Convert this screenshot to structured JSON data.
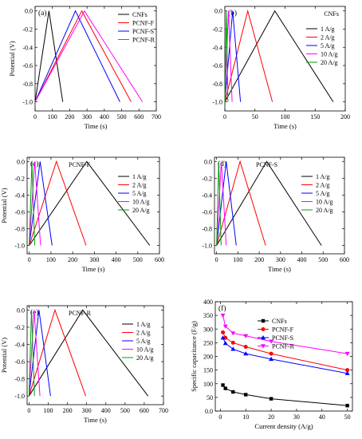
{
  "colors": {
    "black": "#000000",
    "red": "#ff0000",
    "blue": "#0000ff",
    "magenta": "#ff00ff",
    "green": "#00a000"
  },
  "chart_data": [
    {
      "panel": "(a)",
      "type": "line",
      "title": "",
      "xlabel": "Time (s)",
      "ylabel": "Potential (V)",
      "xlim": [
        0,
        700
      ],
      "ylim": [
        -1.1,
        0.05
      ],
      "xticks": [
        0,
        100,
        200,
        300,
        400,
        500,
        600,
        700
      ],
      "yticks": [
        -1.0,
        -0.8,
        -0.6,
        -0.4,
        -0.2,
        0.0
      ],
      "legend_position": "top-right",
      "series": [
        {
          "name": "CNFs",
          "color": "#000000",
          "x": [
            0,
            80,
            160
          ],
          "y": [
            -1.0,
            0.0,
            -1.0
          ]
        },
        {
          "name": "PCNF-F",
          "color": "#ff0000",
          "x": [
            0,
            270,
            555
          ],
          "y": [
            -1.0,
            0.0,
            -1.0
          ]
        },
        {
          "name": "PCNF-S",
          "color": "#0000ff",
          "x": [
            0,
            233,
            490
          ],
          "y": [
            -1.0,
            0.0,
            -1.0
          ]
        },
        {
          "name": "PCNF-R",
          "color": "#ff00ff",
          "x": [
            0,
            285,
            620
          ],
          "y": [
            -1.0,
            0.0,
            -1.0
          ]
        }
      ]
    },
    {
      "panel": "(b)",
      "type": "line",
      "title": "CNFs",
      "xlabel": "Time (s)",
      "ylabel": "",
      "xlim": [
        0,
        200
      ],
      "ylim": [
        -1.1,
        0.05
      ],
      "xticks": [
        0,
        50,
        100,
        150,
        200
      ],
      "yticks": [
        -1.0,
        -0.8,
        -0.6,
        -0.4,
        -0.2,
        0.0
      ],
      "legend_position": "right",
      "series": [
        {
          "name": "1 A/g",
          "color": "#000000",
          "x": [
            0,
            83,
            180
          ],
          "y": [
            -1.0,
            0.0,
            -1.0
          ]
        },
        {
          "name": "2 A/g",
          "color": "#ff0000",
          "x": [
            0,
            38,
            79
          ],
          "y": [
            -1.0,
            0.0,
            -1.0
          ]
        },
        {
          "name": "5 A/g",
          "color": "#0000ff",
          "x": [
            0,
            13,
            26
          ],
          "y": [
            -1.0,
            0.0,
            -1.0
          ]
        },
        {
          "name": "10 A/g",
          "color": "#ff00ff",
          "x": [
            0,
            6,
            12
          ],
          "y": [
            -1.0,
            0.0,
            -1.0
          ]
        },
        {
          "name": "20 A/g",
          "color": "#00a000",
          "x": [
            0,
            2.5,
            5
          ],
          "y": [
            -1.0,
            0.0,
            -1.0
          ]
        }
      ]
    },
    {
      "panel": "(c)",
      "type": "line",
      "title": "PCNF-F",
      "xlabel": "Time (s)",
      "ylabel": "Potential (V)",
      "xlim": [
        -10,
        600
      ],
      "ylim": [
        -1.1,
        0.05
      ],
      "xticks": [
        0,
        100,
        200,
        300,
        400,
        500,
        600
      ],
      "yticks": [
        -1.0,
        -0.8,
        -0.6,
        -0.4,
        -0.2,
        0.0
      ],
      "legend_position": "right",
      "series": [
        {
          "name": "1 A/g",
          "color": "#000000",
          "x": [
            0,
            265,
            555
          ],
          "y": [
            -1.0,
            0.0,
            -1.0
          ]
        },
        {
          "name": "2 A/g",
          "color": "#ff0000",
          "x": [
            0,
            125,
            262
          ],
          "y": [
            -1.0,
            0.0,
            -1.0
          ]
        },
        {
          "name": "5 A/g",
          "color": "#0000ff",
          "x": [
            0,
            50,
            105
          ],
          "y": [
            -1.0,
            0.0,
            -1.0
          ]
        },
        {
          "name": "10 A/g",
          "color": "#ff00ff",
          "x": [
            0,
            25,
            52
          ],
          "y": [
            -1.0,
            0.0,
            -1.0
          ]
        },
        {
          "name": "20 A/g",
          "color": "#00a000",
          "x": [
            0,
            12,
            25
          ],
          "y": [
            -1.0,
            0.0,
            -1.0
          ]
        }
      ]
    },
    {
      "panel": "(d)",
      "type": "line",
      "title": "PCNF-S",
      "xlabel": "Time (s)",
      "ylabel": "",
      "xlim": [
        -10,
        600
      ],
      "ylim": [
        -1.1,
        0.05
      ],
      "xticks": [
        0,
        100,
        200,
        300,
        400,
        500,
        600
      ],
      "yticks": [
        -1.0,
        -0.8,
        -0.6,
        -0.4,
        -0.2,
        0.0
      ],
      "legend_position": "right",
      "series": [
        {
          "name": "1 A/g",
          "color": "#000000",
          "x": [
            0,
            235,
            492
          ],
          "y": [
            -1.0,
            0.0,
            -1.0
          ]
        },
        {
          "name": "2 A/g",
          "color": "#ff0000",
          "x": [
            0,
            110,
            230
          ],
          "y": [
            -1.0,
            0.0,
            -1.0
          ]
        },
        {
          "name": "5 A/g",
          "color": "#0000ff",
          "x": [
            0,
            45,
            92
          ],
          "y": [
            -1.0,
            0.0,
            -1.0
          ]
        },
        {
          "name": "10 A/g",
          "color": "#ff00ff",
          "x": [
            0,
            22,
            45
          ],
          "y": [
            -1.0,
            0.0,
            -1.0
          ]
        },
        {
          "name": "20 A/g",
          "color": "#00a000",
          "x": [
            0,
            10,
            21
          ],
          "y": [
            -1.0,
            0.0,
            -1.0
          ]
        }
      ]
    },
    {
      "panel": "(e)",
      "type": "line",
      "title": "PCNF-R",
      "xlabel": "Time (s)",
      "ylabel": "Potential (V)",
      "xlim": [
        -10,
        700
      ],
      "ylim": [
        -1.1,
        0.05
      ],
      "xticks": [
        0,
        100,
        200,
        300,
        400,
        500,
        600,
        700
      ],
      "yticks": [
        -1.0,
        -0.8,
        -0.6,
        -0.4,
        -0.2,
        0.0
      ],
      "legend_position": "right",
      "series": [
        {
          "name": "1 A/g",
          "color": "#000000",
          "x": [
            0,
            280,
            620
          ],
          "y": [
            -1.0,
            0.0,
            -1.0
          ]
        },
        {
          "name": "2 A/g",
          "color": "#ff0000",
          "x": [
            0,
            135,
            295
          ],
          "y": [
            -1.0,
            0.0,
            -1.0
          ]
        },
        {
          "name": "5 A/g",
          "color": "#0000ff",
          "x": [
            0,
            52,
            112
          ],
          "y": [
            -1.0,
            0.0,
            -1.0
          ]
        },
        {
          "name": "10 A/g",
          "color": "#ff00ff",
          "x": [
            0,
            26,
            57
          ],
          "y": [
            -1.0,
            0.0,
            -1.0
          ]
        },
        {
          "name": "20 A/g",
          "color": "#00a000",
          "x": [
            0,
            13,
            28
          ],
          "y": [
            -1.0,
            0.0,
            -1.0
          ]
        }
      ]
    },
    {
      "panel": "(f)",
      "type": "line",
      "title": "",
      "xlabel": "Current density (A/g)",
      "ylabel": "Specific capacitance (F/g)",
      "xlim": [
        -2,
        52
      ],
      "ylim": [
        0,
        400
      ],
      "xticks": [
        0,
        10,
        20,
        30,
        40,
        50
      ],
      "yticks": [
        0,
        50,
        100,
        150,
        200,
        250,
        300,
        350,
        400
      ],
      "legend_position": "top-right",
      "series": [
        {
          "name": "CNFs",
          "color": "#000000",
          "marker": "square",
          "x": [
            1,
            2,
            5,
            10,
            20,
            50
          ],
          "y": [
            95,
            83,
            70,
            60,
            45,
            20
          ]
        },
        {
          "name": "PCNF-F",
          "color": "#ff0000",
          "marker": "circle",
          "x": [
            1,
            2,
            5,
            10,
            20,
            50
          ],
          "y": [
            288,
            268,
            250,
            235,
            210,
            150
          ]
        },
        {
          "name": "PCNF-S",
          "color": "#0000ff",
          "marker": "triangle-up",
          "x": [
            1,
            2,
            5,
            10,
            20,
            50
          ],
          "y": [
            268,
            248,
            227,
            210,
            190,
            138
          ]
        },
        {
          "name": "PCNF-R",
          "color": "#ff00ff",
          "marker": "triangle-down",
          "x": [
            1,
            2,
            5,
            10,
            20,
            50
          ],
          "y": [
            350,
            310,
            285,
            275,
            255,
            210
          ]
        }
      ]
    }
  ]
}
